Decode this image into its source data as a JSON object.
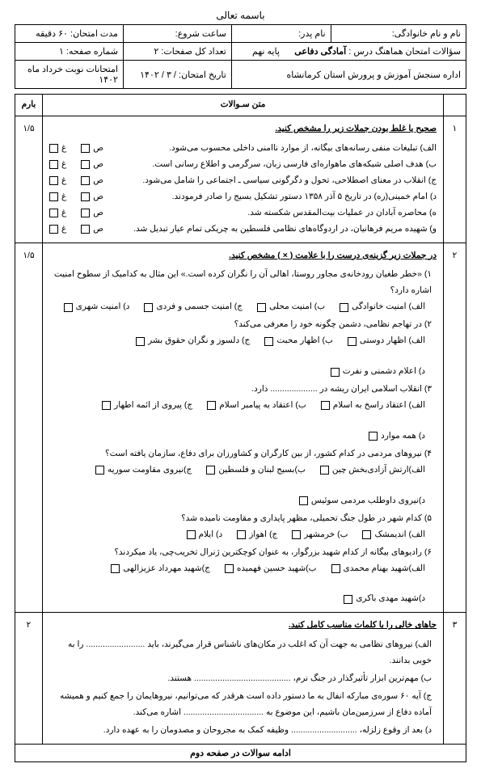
{
  "bismillah": "باسمه تعالی",
  "header": {
    "row1": {
      "c1_label": "نام و نام خانوادگی:",
      "c2_label": "نام پدر:",
      "c3_label": "ساعت شروع:",
      "c4_label": "مدت امتحان:",
      "c4_value": "۶۰ دقیقه"
    },
    "row2": {
      "c1_label": "سؤالات امتحان هماهنگ درس :",
      "c1_value": "آمادگی دفاعی",
      "c2_label": "پایه نهم",
      "c3_label": "تعداد کل صفحات:",
      "c3_value": "۲",
      "c4_label": "شماره صفحه:",
      "c4_value": "۱"
    },
    "row3": {
      "c1_label": "اداره سنجش آموزش و پرورش استان کرمانشاه",
      "c2_label": "تاریخ امتحان:",
      "c2_value": "/ ۳ / ۱۴۰۲",
      "c3_label": "امتحانات نوبت خرداد ماه ۱۴۰۲"
    }
  },
  "columns": {
    "num": "",
    "body": "متن سـوالات",
    "score": "بارم"
  },
  "tf_labels": {
    "true": "ص",
    "false": "غ"
  },
  "q1": {
    "num": "۱",
    "score": "۱/۵",
    "title": "صحیح یا غلط بودن جملات زیر را مشخص کنید.",
    "items": [
      "الف) تبلیغات منفی رسانه‌های بیگانه، از موارد ناامنی داخلی محسوب می‌شود.",
      "ب) هدف اصلی شبکه‌های ماهواره‌ای فارسی زبان، سرگرمی و اطلاع رسانی است.",
      "ج) انقلاب در معنای اصطلاحی، تحول و دگرگونی سیاسی ـ اجتماعی را شامل می‌شود.",
      "د) امام خمینی(ره) در تاریخ ۵ آذر ۱۳۵۸ دستور تشکیل بسیج را صادر فرمودند.",
      "ه) محاصره آبادان در عملیات بیت‌المقدس شکسته شد.",
      "و) شهیده مریم فرهانیان، در اردوگاه‌های نظامی فلسطین به چریکی تمام عیار تبدیل شد."
    ]
  },
  "q2": {
    "num": "۲",
    "score": "۱/۵",
    "title": "در جملات زیر گزینه‌ی درست را با علامت ( × ) مشخص کنید.",
    "subs": [
      {
        "text": "۱) «خطر طغیان رودخانه‌ی مجاور روستا، اهالی آن را نگران کرده است.» این مثال به کدامیک از سطوح امنیت اشاره دارد؟",
        "opts": [
          "الف) امنیت خانوادگی",
          "ب) امنیت محلی",
          "ج) امنیت جسمی و فردی",
          "د) امنیت شهری"
        ]
      },
      {
        "text": "۲) در تهاجم نظامی، دشمن چگونه خود را معرفی می‌کند؟",
        "opts": [
          "الف) اظهار دوستی",
          "ب) اظهار محبت",
          "ج) دلسوز و نگران حقوق بشر",
          "د) اعلام دشمنی و نفرت"
        ]
      },
      {
        "text": "۳) انقلاب اسلامی ایران ریشه در .................... دارد.",
        "opts": [
          "الف) اعتقاد راسخ به اسلام",
          "ب) اعتقاد به پیامبر اسلام",
          "ج) پیروی از ائمه اطهار",
          "د) همه موارد"
        ]
      },
      {
        "text": "۴) نیروهای مردمی در کدام کشور، از بین کارگران و کشاورزان برای دفاع، سازمان یافته است؟",
        "opts": [
          "الف)ارتش آزادی‌بخش چین",
          "ب)بسیج لبنان و فلسطین",
          "ج)نیروی مقاومت سوریه",
          "د)نیروی داوطلب مردمی سوئیس"
        ]
      },
      {
        "text": "۵) کدام شهر در طول جنگ تحمیلی، مظهر پایداری و مقاومت نامیده شد؟",
        "opts": [
          "الف) اندیمشک",
          "ب) خرمشهر",
          "ج) اهواز",
          "د) ایلام"
        ]
      },
      {
        "text": "۶) رادیوهای بیگانه از کدام شهید بزرگوار، به عنوان کوچکترین ژنرال تخریب‌چی، یاد میکردند؟",
        "opts": [
          "الف)شهید بهنام محمدی",
          "ب)شهید حسین فهمیده",
          "ج)شهید مهرداد عزیزالهی",
          "د)شهید مهدی باکری"
        ]
      }
    ]
  },
  "q3": {
    "num": "۳",
    "score": "۲",
    "title": "جاهای خالی را با کلمات مناسب کامل کنید.",
    "items": [
      "الف) نیروهای نظامی به جهت آن که اغلب در مکان‌های ناشناس قرار می‌گیرند، باید ......................... را به خوبی بدانند.",
      "ب) مهم‌ترین ابزار تأثیرگذار در جنگ نرم، ......................................... هستند.",
      "ج) آیه ۶۰ سوره‌ی مبارکه انفال به ما دستور داده است هرقدر که می‌توانیم، نیروهایمان را جمع کنیم و همیشه آماده دفاع از سرزمین‌مان باشیم، این موضوع به .................................. اشاره می‌کند.",
      "د) بعد از وقوع زلزله، ............................ وظیفه کمک به مجروحان و مصدومان را به عهده دارد."
    ]
  },
  "footer": "ادامه سوالات در صفحه دوم"
}
